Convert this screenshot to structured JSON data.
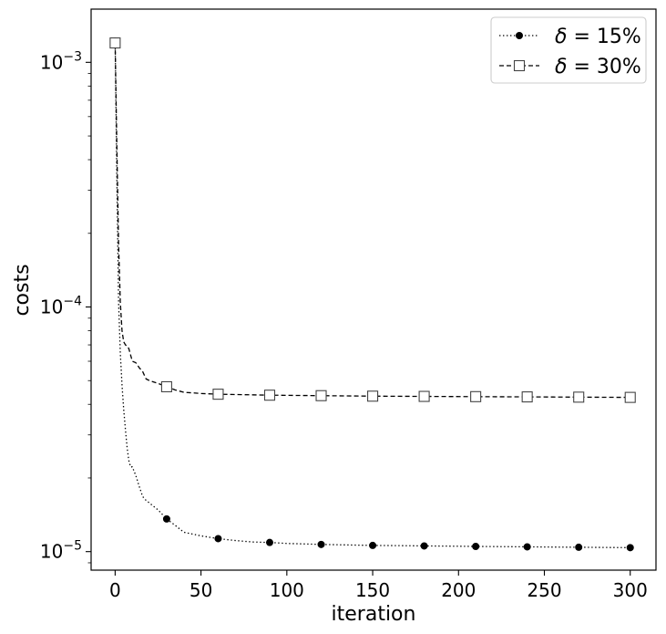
{
  "chart_data": {
    "type": "line",
    "title": "",
    "xlabel": "iteration",
    "ylabel": "costs",
    "xscale": "linear",
    "yscale": "log",
    "xlim": [
      -14,
      315
    ],
    "ylim": [
      8.4e-06,
      0.00165
    ],
    "x_ticks": [
      0,
      50,
      100,
      150,
      200,
      250,
      300
    ],
    "x_tick_labels": [
      "0",
      "50",
      "100",
      "150",
      "200",
      "250",
      "300"
    ],
    "y_ticks": [
      1e-05,
      0.0001,
      0.001
    ],
    "y_tick_labels": [
      {
        "base": "10",
        "exp": "−5"
      },
      {
        "base": "10",
        "exp": "−4"
      },
      {
        "base": "10",
        "exp": "−3"
      }
    ],
    "grid": false,
    "legend": {
      "location": "top-right",
      "frame": true
    },
    "series": [
      {
        "name": "δ = 15%",
        "label_symbol": "δ",
        "label_rest": " = 15%",
        "color": "#000000",
        "linestyle": "dotted",
        "marker": "filled-circle",
        "x": [
          0,
          1,
          2,
          3,
          4,
          5,
          6,
          7,
          8,
          9,
          10,
          12,
          14,
          16,
          18,
          20,
          25,
          30,
          35,
          40,
          50,
          60,
          70,
          80,
          90,
          100,
          110,
          120,
          135,
          150,
          165,
          180,
          195,
          210,
          225,
          240,
          255,
          270,
          285,
          300
        ],
        "y": [
          0.00122,
          0.000335,
          0.000105,
          6.5e-05,
          4.8e-05,
          3.8e-05,
          3.15e-05,
          2.65e-05,
          2.35e-05,
          2.22e-05,
          2.22e-05,
          2.05e-05,
          1.85e-05,
          1.68e-05,
          1.62e-05,
          1.58e-05,
          1.48e-05,
          1.36e-05,
          1.28e-05,
          1.2e-05,
          1.16e-05,
          1.13e-05,
          1.11e-05,
          1.095e-05,
          1.09e-05,
          1.08e-05,
          1.075e-05,
          1.07e-05,
          1.065e-05,
          1.06e-05,
          1.058e-05,
          1.055e-05,
          1.053e-05,
          1.05e-05,
          1.048e-05,
          1.046e-05,
          1.044e-05,
          1.042e-05,
          1.04e-05,
          1.038e-05
        ],
        "marker_x": [
          0,
          30,
          60,
          90,
          120,
          150,
          180,
          210,
          240,
          270,
          300
        ],
        "marker_y": [
          0.00122,
          1.36e-05,
          1.13e-05,
          1.09e-05,
          1.07e-05,
          1.06e-05,
          1.055e-05,
          1.05e-05,
          1.046e-05,
          1.042e-05,
          1.038e-05
        ]
      },
      {
        "name": "δ = 30%",
        "label_symbol": "δ",
        "label_rest": " = 30%",
        "color": "#000000",
        "linestyle": "dashed",
        "marker": "open-square",
        "x": [
          0,
          1,
          2,
          3,
          4,
          5,
          6,
          7,
          8,
          10,
          12,
          14,
          16,
          18,
          20,
          25,
          30,
          35,
          40,
          50,
          60,
          75,
          90,
          105,
          120,
          135,
          150,
          165,
          180,
          195,
          210,
          225,
          240,
          255,
          270,
          285,
          300
        ],
        "y": [
          0.0012,
          0.00045,
          0.00018,
          0.000105,
          8e-05,
          7.2e-05,
          7e-05,
          6.92e-05,
          6.75e-05,
          6e-05,
          5.92e-05,
          5.65e-05,
          5.45e-05,
          5.08e-05,
          5e-05,
          4.87e-05,
          4.72e-05,
          4.58e-05,
          4.48e-05,
          4.43e-05,
          4.4e-05,
          4.38e-05,
          4.36e-05,
          4.35e-05,
          4.34e-05,
          4.33e-05,
          4.32e-05,
          4.315e-05,
          4.31e-05,
          4.305e-05,
          4.3e-05,
          4.295e-05,
          4.29e-05,
          4.285e-05,
          4.28e-05,
          4.275e-05,
          4.27e-05
        ],
        "marker_x": [
          0,
          30,
          60,
          90,
          120,
          150,
          180,
          210,
          240,
          270,
          300
        ],
        "marker_y": [
          0.0012,
          4.72e-05,
          4.4e-05,
          4.36e-05,
          4.34e-05,
          4.32e-05,
          4.31e-05,
          4.3e-05,
          4.29e-05,
          4.28e-05,
          4.27e-05
        ]
      }
    ]
  }
}
